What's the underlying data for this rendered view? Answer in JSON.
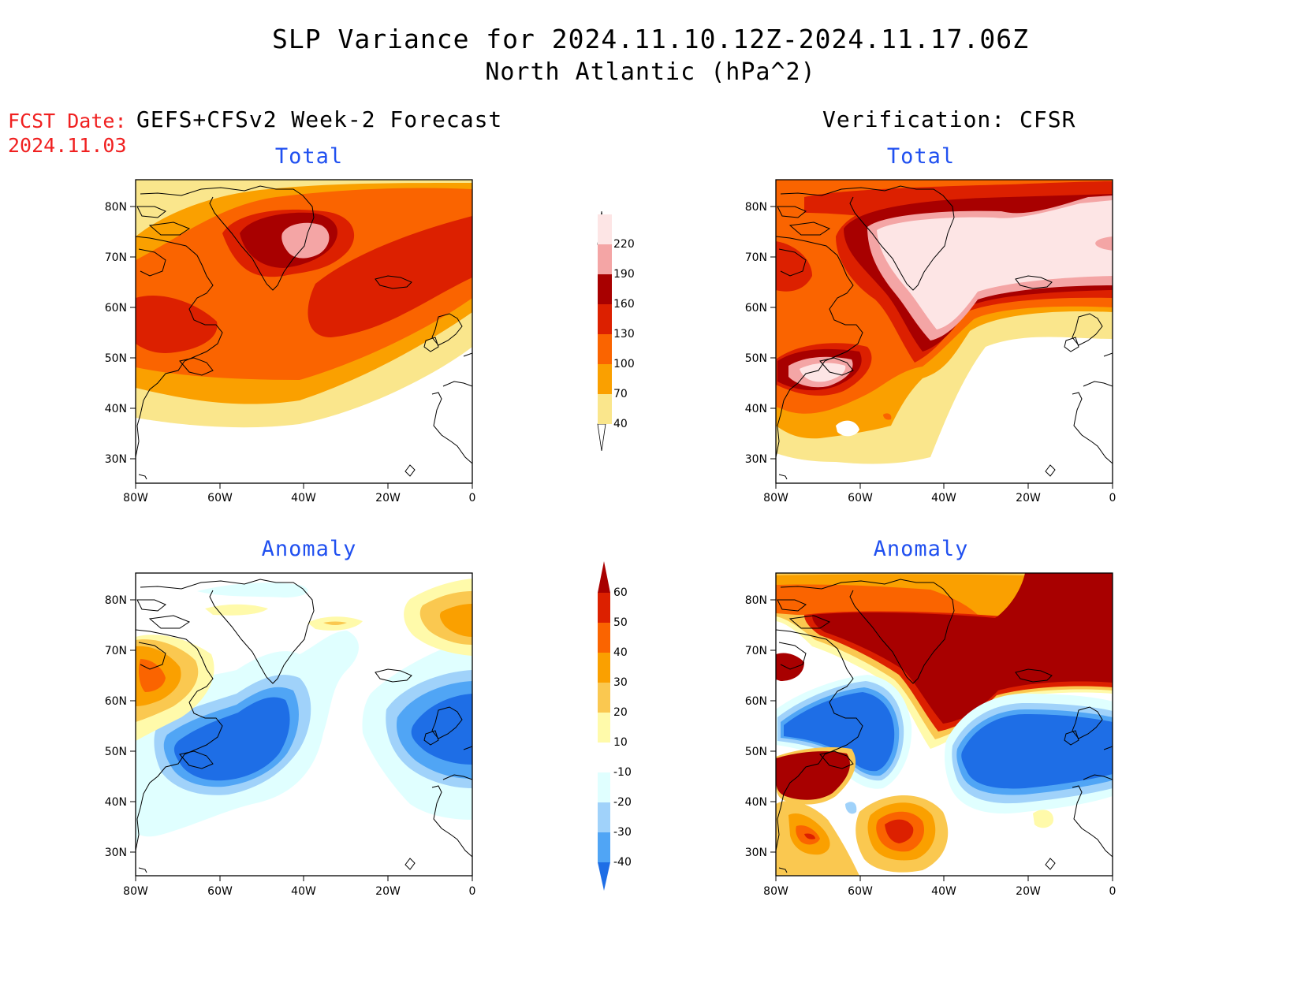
{
  "title_line1": "SLP Variance for 2024.11.10.12Z-2024.11.17.06Z",
  "title_line2": "North Atlantic (hPa^2)",
  "fcst_label": "FCST Date:",
  "fcst_date": "2024.11.03",
  "left_column_title": "GEFS+CFSv2 Week-2 Forecast",
  "right_column_title": "Verification: CFSR",
  "panels": {
    "fc_total": {
      "subtitle": "Total"
    },
    "vf_total": {
      "subtitle": "Total"
    },
    "fc_anom": {
      "subtitle": "Anomaly"
    },
    "vf_anom": {
      "subtitle": "Anomaly"
    }
  },
  "map_axes": {
    "lon_ticks": [
      "80W",
      "60W",
      "40W",
      "20W",
      "0"
    ],
    "lat_ticks": [
      "80N",
      "70N",
      "60N",
      "50N",
      "40N",
      "30N"
    ],
    "lon_range": [
      -80,
      0
    ],
    "lat_range": [
      25,
      85
    ]
  },
  "total_colorbar": {
    "levels": [
      "220",
      "190",
      "160",
      "130",
      "100",
      "70",
      "40"
    ],
    "colors": [
      "#fde5e5",
      "#f4a5a5",
      "#a80000",
      "#dc2000",
      "#fa6400",
      "#faa000",
      "#fae68c"
    ]
  },
  "anomaly_colorbar": {
    "levels": [
      "60",
      "50",
      "40",
      "30",
      "20",
      "10",
      "-10",
      "-20",
      "-30",
      "-40"
    ],
    "colors": [
      "#a80000",
      "#dc2000",
      "#fa6400",
      "#faa000",
      "#fac850",
      "#fffaaa",
      "#ffffff",
      "#e0ffff",
      "#a0d2fa",
      "#50a5f5",
      "#1e6ee6"
    ]
  }
}
